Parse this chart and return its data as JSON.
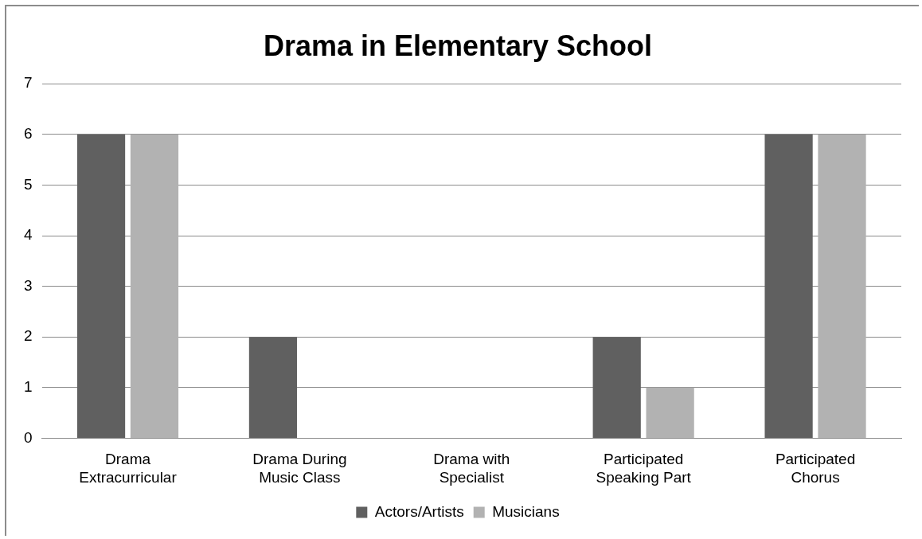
{
  "chart_data": {
    "type": "bar",
    "title": "Drama in Elementary School",
    "categories": [
      "Drama Extracurricular",
      "Drama During Music Class",
      "Drama with Specialist",
      "Participated Speaking Part",
      "Participated Chorus"
    ],
    "series": [
      {
        "name": "Actors/Artists",
        "color": "#606060",
        "values": [
          6,
          2,
          0,
          2,
          6
        ]
      },
      {
        "name": "Musicians",
        "color": "#b2b2b2",
        "values": [
          6,
          0,
          0,
          1,
          6
        ]
      }
    ],
    "ylim": [
      0,
      7
    ],
    "yticks": [
      0,
      1,
      2,
      3,
      4,
      5,
      6,
      7
    ],
    "grid": "y",
    "legend": "bottom"
  }
}
